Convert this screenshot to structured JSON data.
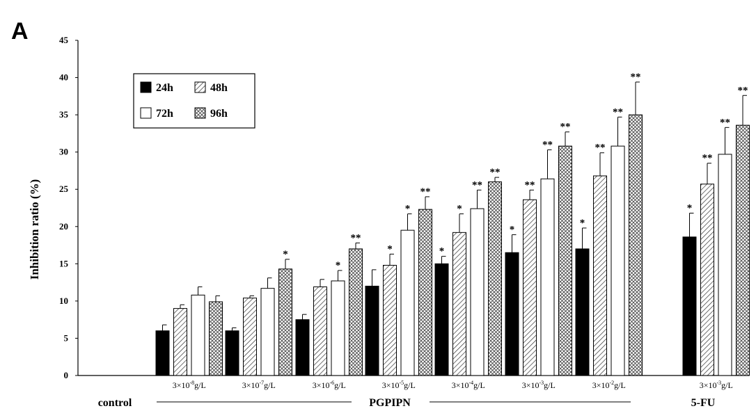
{
  "chart_data": {
    "type": "bar",
    "panel_label": "A",
    "title": "",
    "ylabel": "Inhibition ratio (%)",
    "ylim": [
      0,
      45
    ],
    "ytick_step": 5,
    "grid": false,
    "legend_position": "top-left",
    "categories": [
      {
        "base": "3×10",
        "exp": "-8",
        "unit": "g/L"
      },
      {
        "base": "3×10",
        "exp": "-7",
        "unit": "g/L"
      },
      {
        "base": "3×10",
        "exp": "-6",
        "unit": "g/L"
      },
      {
        "base": "3×10",
        "exp": "-5",
        "unit": "g/L"
      },
      {
        "base": "3×10",
        "exp": "-4",
        "unit": "g/L"
      },
      {
        "base": "3×10",
        "exp": "-3",
        "unit": "g/L"
      },
      {
        "base": "3×10",
        "exp": "-2",
        "unit": "g/L"
      },
      {
        "base": "3×10",
        "exp": "-3",
        "unit": "g/L"
      }
    ],
    "groups": [
      {
        "label": "control",
        "categories": []
      },
      {
        "label": "PGPIPN",
        "categories": [
          0,
          1,
          2,
          3,
          4,
          5,
          6
        ]
      },
      {
        "label": "5-FU",
        "categories": [
          7
        ]
      }
    ],
    "series": [
      {
        "name": "24h",
        "pattern": "solid",
        "values": [
          6.0,
          6.0,
          7.5,
          12.0,
          15.0,
          16.5,
          17.0,
          18.6
        ],
        "errors": [
          0.8,
          0.4,
          0.7,
          2.2,
          1.0,
          2.4,
          2.8,
          3.2
        ],
        "marks": [
          "",
          "",
          "",
          "",
          "*",
          "*",
          "*",
          "*"
        ]
      },
      {
        "name": "48h",
        "pattern": "hatched",
        "values": [
          9.0,
          10.4,
          11.9,
          14.8,
          19.2,
          23.6,
          26.8,
          25.7
        ],
        "errors": [
          0.5,
          0.3,
          1.0,
          1.5,
          2.5,
          1.3,
          3.1,
          2.8
        ],
        "marks": [
          "",
          "",
          "",
          "*",
          "*",
          "**",
          "**",
          "**"
        ]
      },
      {
        "name": "72h",
        "pattern": "open",
        "values": [
          10.8,
          11.7,
          12.7,
          19.5,
          22.4,
          26.4,
          30.8,
          29.7
        ],
        "errors": [
          1.1,
          1.4,
          1.4,
          2.2,
          2.5,
          3.9,
          3.9,
          3.6
        ],
        "marks": [
          "",
          "",
          "*",
          "*",
          "**",
          "**",
          "**",
          "**"
        ]
      },
      {
        "name": "96h",
        "pattern": "crosshatched",
        "values": [
          9.9,
          14.3,
          17.0,
          22.3,
          26.0,
          30.8,
          35.0,
          33.6
        ],
        "errors": [
          0.8,
          1.3,
          0.8,
          1.7,
          0.6,
          1.9,
          4.4,
          4.0
        ],
        "marks": [
          "",
          "*",
          "**",
          "**",
          "**",
          "**",
          "**",
          "**"
        ]
      }
    ]
  }
}
